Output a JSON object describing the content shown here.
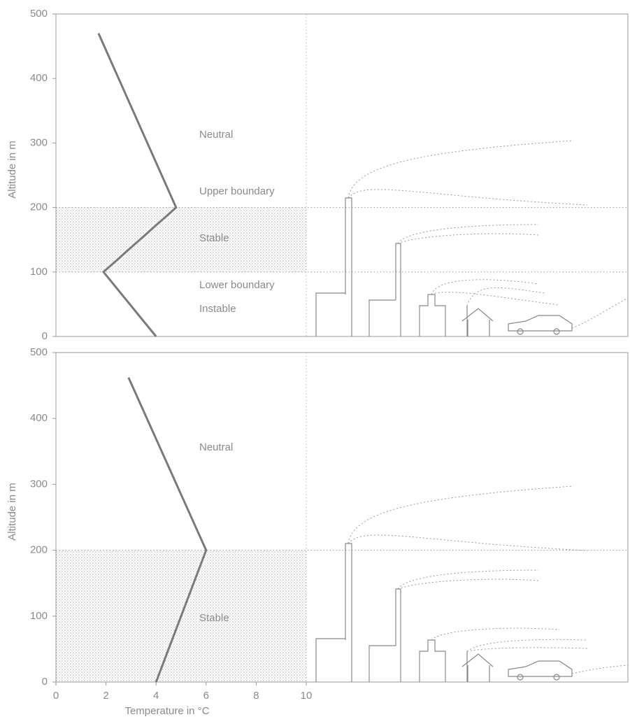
{
  "chart_data": [
    {
      "type": "line",
      "ylabel": "Altitude in m",
      "x": [
        4,
        1.9,
        4.8,
        1.7
      ],
      "values": [
        0,
        100,
        200,
        470
      ],
      "color": "#7a7a7a",
      "xlim": [
        0,
        10
      ],
      "ylim": [
        0,
        500
      ],
      "yticks": [
        0,
        100,
        200,
        300,
        400,
        500
      ],
      "shaded_band": [
        100,
        200
      ],
      "annotations": [
        "Neutral",
        "Upper boundary",
        "Stable",
        "Lower boundary",
        "Instable"
      ]
    },
    {
      "type": "line",
      "ylabel": "Altitude in m",
      "xlabel": "Temperature in °C",
      "x": [
        4,
        6,
        2.9
      ],
      "values": [
        0,
        200,
        462
      ],
      "color": "#7a7a7a",
      "xlim": [
        0,
        10
      ],
      "ylim": [
        0,
        500
      ],
      "yticks": [
        0,
        100,
        200,
        300,
        400,
        500
      ],
      "xticks": [
        0,
        2,
        4,
        6,
        8,
        10
      ],
      "shaded_band": [
        0,
        200
      ],
      "annotations": [
        "Neutral",
        "Stable"
      ]
    }
  ]
}
